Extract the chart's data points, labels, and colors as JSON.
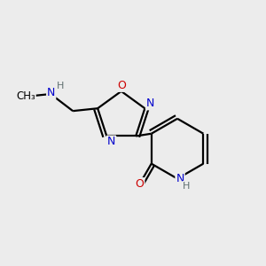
{
  "background_color": "#ececec",
  "bond_color": "#000000",
  "atom_colors": {
    "N": "#0000cc",
    "O": "#cc0000",
    "C": "#000000",
    "H": "#607070"
  },
  "figsize": [
    3.0,
    3.0
  ],
  "dpi": 100
}
